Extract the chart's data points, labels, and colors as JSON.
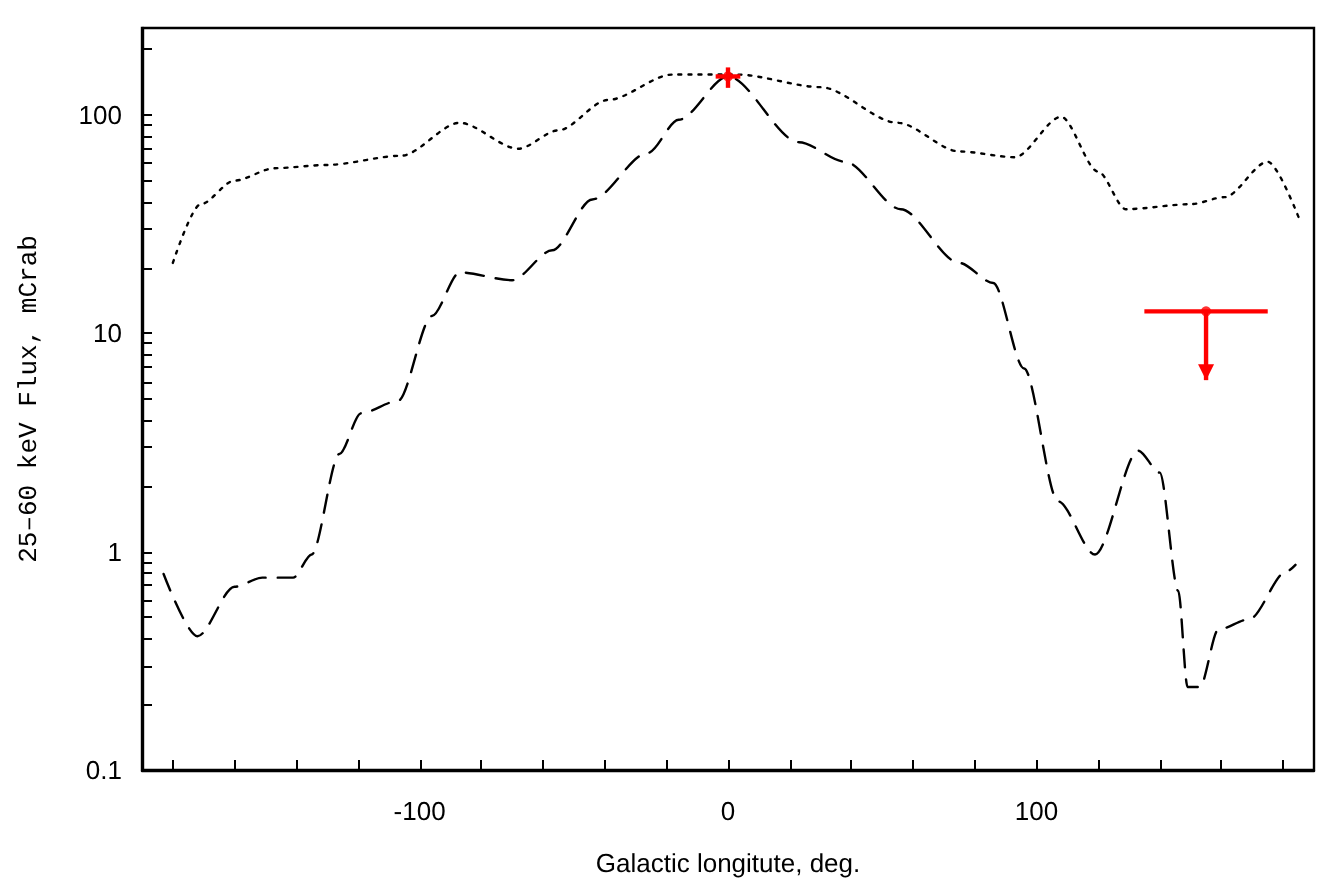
{
  "chart_data": {
    "type": "line",
    "xlabel": "Galactic longitute, deg.",
    "ylabel": "25–60 keV Flux, mCrab",
    "xlim": [
      -190,
      190
    ],
    "xticks": [
      {
        "value": -180,
        "label": null
      },
      {
        "value": -160,
        "label": null
      },
      {
        "value": -140,
        "label": null
      },
      {
        "value": -120,
        "label": null
      },
      -100,
      {
        "value": -80,
        "label": null
      },
      {
        "value": -60,
        "label": null
      },
      {
        "value": -40,
        "label": null
      },
      {
        "value": -20,
        "label": null
      },
      0,
      {
        "value": 20,
        "label": null
      },
      {
        "value": 40,
        "label": null
      },
      {
        "value": 60,
        "label": null
      },
      {
        "value": 80,
        "label": null
      },
      100,
      {
        "value": 120,
        "label": null
      },
      {
        "value": 140,
        "label": null
      },
      {
        "value": 160,
        "label": null
      },
      {
        "value": 180,
        "label": null
      }
    ],
    "ylim": [
      0.1,
      250
    ],
    "yticks": [
      0.1,
      {
        "value": 0.2,
        "label": null
      },
      {
        "value": 0.3,
        "label": null
      },
      {
        "value": 0.4,
        "label": null
      },
      {
        "value": 0.5,
        "label": null
      },
      {
        "value": 0.6,
        "label": null
      },
      {
        "value": 0.7,
        "label": null
      },
      {
        "value": 0.8,
        "label": null
      },
      {
        "value": 0.9,
        "label": null
      },
      1,
      {
        "value": 2,
        "label": null
      },
      {
        "value": 3,
        "label": null
      },
      {
        "value": 4,
        "label": null
      },
      {
        "value": 5,
        "label": null
      },
      {
        "value": 6,
        "label": null
      },
      {
        "value": 7,
        "label": null
      },
      {
        "value": 8,
        "label": null
      },
      {
        "value": 9,
        "label": null
      },
      10,
      {
        "value": 20,
        "label": null
      },
      {
        "value": 30,
        "label": null
      },
      {
        "value": 40,
        "label": null
      },
      {
        "value": 50,
        "label": null
      },
      {
        "value": 60,
        "label": null
      },
      {
        "value": 70,
        "label": null
      },
      {
        "value": 80,
        "label": null
      },
      {
        "value": 90,
        "label": null
      },
      100,
      {
        "value": 200,
        "label": null
      }
    ],
    "log": "y",
    "grid": false,
    "series": [
      {
        "color": "#000000",
        "line_style": "dotted",
        "marker": "none",
        "x": [
          -180,
          -171,
          -160,
          -147,
          -130,
          -106,
          -87,
          -68,
          -55,
          -39,
          -18,
          3,
          30,
          55,
          75,
          93,
          108,
          120,
          129,
          150,
          161,
          175,
          185
        ],
        "values": [
          21,
          39,
          50,
          57,
          59,
          65,
          92,
          70,
          85,
          117,
          153,
          153,
          134,
          92,
          68,
          64,
          98,
          55,
          37,
          39,
          42,
          61,
          34
        ]
      },
      {
        "color": "#000000",
        "line_style": "dashed",
        "marker": "none",
        "x": [
          -183,
          -172,
          -160,
          -151,
          -141,
          -135,
          -126,
          -119,
          -107,
          -96,
          -87,
          -70,
          -57,
          -44,
          -26,
          -16,
          0,
          23,
          38,
          56,
          75,
          86,
          96,
          107,
          119,
          133,
          140,
          146,
          149,
          153,
          159,
          169,
          181,
          184
        ],
        "values": [
          0.79,
          0.41,
          0.69,
          0.76,
          0.76,
          0.97,
          2.8,
          4.3,
          4.9,
          12,
          19,
          17.5,
          24,
          41,
          67,
          95,
          150,
          75,
          61,
          37,
          21,
          17,
          6.9,
          1.7,
          0.97,
          2.9,
          2.3,
          0.66,
          0.24,
          0.24,
          0.44,
          0.49,
          0.81,
          0.87
        ]
      },
      {
        "type": "scatter",
        "color": "#ff0000",
        "marker": "circle",
        "x": [
          0
        ],
        "values": [
          150
        ],
        "errors": [
          [
            133,
            165
          ]
        ],
        "xerrors": [
          4
        ]
      },
      {
        "type": "scatter",
        "color": "#ff0000",
        "marker": "circle",
        "x": [
          155
        ],
        "values": [
          12.6
        ],
        "errors": [
          [
            6.1,
            12.6
          ]
        ],
        "xerrors": [
          20
        ]
      }
    ]
  }
}
